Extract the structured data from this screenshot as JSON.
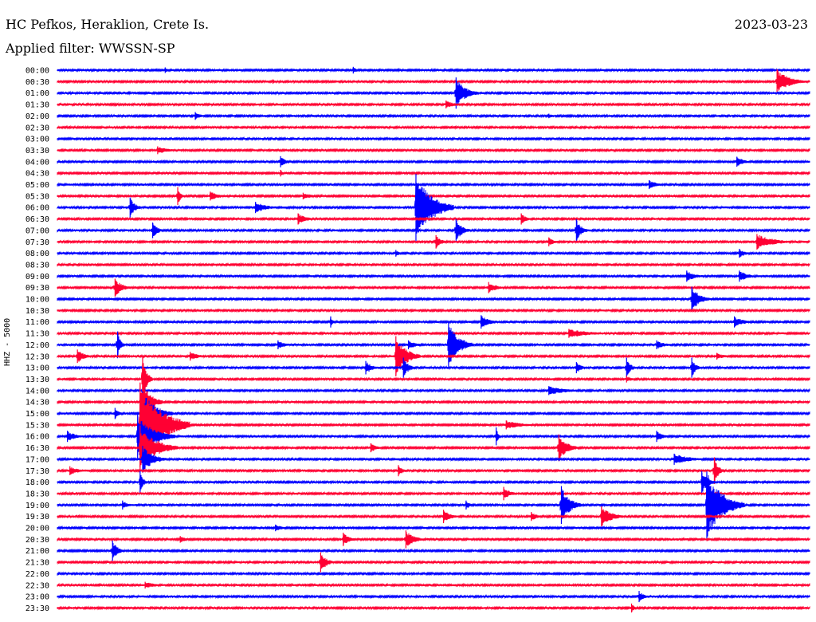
{
  "header": {
    "station": "HC Pefkos, Heraklion, Crete Is.",
    "date": "2023-03-23",
    "filter": "Applied filter: WWSSN-SP"
  },
  "axis_label": "HHZ - 5000",
  "colors": {
    "blue": "#0000ff",
    "red": "#ff0033",
    "background": "#ffffff"
  },
  "chart_data": {
    "type": "line",
    "title": "HC Pefkos, Heraklion, Crete Is.",
    "ylabel": "HHZ - 5000",
    "time_labels": [
      "00:00",
      "00:30",
      "01:00",
      "01:30",
      "02:00",
      "02:30",
      "03:00",
      "03:30",
      "04:00",
      "04:30",
      "05:00",
      "05:30",
      "06:00",
      "06:30",
      "07:00",
      "07:30",
      "08:00",
      "08:30",
      "09:00",
      "09:30",
      "10:00",
      "10:30",
      "11:00",
      "11:30",
      "12:00",
      "12:30",
      "13:00",
      "13:30",
      "14:00",
      "14:30",
      "15:00",
      "15:30",
      "16:00",
      "16:30",
      "17:00",
      "17:30",
      "18:00",
      "18:30",
      "19:00",
      "19:30",
      "20:00",
      "20:30",
      "21:00",
      "21:30",
      "22:00",
      "22:30",
      "23:00",
      "23:30"
    ],
    "trace_colors_alternating": [
      "blue",
      "red"
    ],
    "trace_minutes": 30,
    "events": [
      {
        "trace": "00:00",
        "minute": 4.3,
        "amp": 0.25,
        "dur": 0.3
      },
      {
        "trace": "00:00",
        "minute": 11.8,
        "amp": 0.3,
        "dur": 0.3
      },
      {
        "trace": "00:30",
        "minute": 8.6,
        "amp": 0.2,
        "dur": 0.2
      },
      {
        "trace": "00:30",
        "minute": 28.7,
        "amp": 1.1,
        "dur": 1.2
      },
      {
        "trace": "01:00",
        "minute": 15.9,
        "amp": 1.4,
        "dur": 0.9
      },
      {
        "trace": "01:30",
        "minute": 15.5,
        "amp": 0.35,
        "dur": 0.9
      },
      {
        "trace": "02:00",
        "minute": 5.5,
        "amp": 0.35,
        "dur": 0.6
      },
      {
        "trace": "02:00",
        "minute": 19.6,
        "amp": 0.2,
        "dur": 0.5
      },
      {
        "trace": "03:30",
        "minute": 4.0,
        "amp": 0.35,
        "dur": 1.1
      },
      {
        "trace": "04:00",
        "minute": 8.9,
        "amp": 0.5,
        "dur": 0.5
      },
      {
        "trace": "04:00",
        "minute": 27.1,
        "amp": 0.45,
        "dur": 0.7
      },
      {
        "trace": "04:30",
        "minute": 8.9,
        "amp": 0.3,
        "dur": 0.3
      },
      {
        "trace": "05:00",
        "minute": 23.6,
        "amp": 0.4,
        "dur": 0.8
      },
      {
        "trace": "05:30",
        "minute": 4.8,
        "amp": 0.8,
        "dur": 0.3
      },
      {
        "trace": "05:30",
        "minute": 6.1,
        "amp": 0.4,
        "dur": 0.9
      },
      {
        "trace": "05:30",
        "minute": 9.8,
        "amp": 0.3,
        "dur": 0.9
      },
      {
        "trace": "06:00",
        "minute": 2.9,
        "amp": 0.9,
        "dur": 0.5
      },
      {
        "trace": "06:00",
        "minute": 7.9,
        "amp": 0.5,
        "dur": 1.1
      },
      {
        "trace": "06:00",
        "minute": 14.3,
        "amp": 3.0,
        "dur": 1.5
      },
      {
        "trace": "06:30",
        "minute": 9.6,
        "amp": 0.5,
        "dur": 0.8
      },
      {
        "trace": "06:30",
        "minute": 18.5,
        "amp": 0.5,
        "dur": 0.5
      },
      {
        "trace": "07:00",
        "minute": 3.8,
        "amp": 0.7,
        "dur": 0.5
      },
      {
        "trace": "07:00",
        "minute": 15.9,
        "amp": 1.0,
        "dur": 0.6
      },
      {
        "trace": "07:00",
        "minute": 20.7,
        "amp": 1.0,
        "dur": 0.5
      },
      {
        "trace": "07:30",
        "minute": 15.1,
        "amp": 0.6,
        "dur": 0.5
      },
      {
        "trace": "07:30",
        "minute": 19.6,
        "amp": 0.4,
        "dur": 0.5
      },
      {
        "trace": "07:30",
        "minute": 27.9,
        "amp": 0.7,
        "dur": 1.6
      },
      {
        "trace": "08:00",
        "minute": 13.5,
        "amp": 0.3,
        "dur": 0.4
      },
      {
        "trace": "08:00",
        "minute": 27.2,
        "amp": 0.4,
        "dur": 0.6
      },
      {
        "trace": "09:00",
        "minute": 25.1,
        "amp": 0.5,
        "dur": 0.8
      },
      {
        "trace": "09:00",
        "minute": 27.2,
        "amp": 0.5,
        "dur": 0.8
      },
      {
        "trace": "09:30",
        "minute": 2.3,
        "amp": 0.8,
        "dur": 0.7
      },
      {
        "trace": "09:30",
        "minute": 17.2,
        "amp": 0.5,
        "dur": 0.8
      },
      {
        "trace": "10:00",
        "minute": 25.3,
        "amp": 1.1,
        "dur": 0.8
      },
      {
        "trace": "11:00",
        "minute": 10.9,
        "amp": 0.5,
        "dur": 0.2
      },
      {
        "trace": "11:00",
        "minute": 16.9,
        "amp": 0.6,
        "dur": 0.9
      },
      {
        "trace": "11:00",
        "minute": 27.0,
        "amp": 0.5,
        "dur": 0.9
      },
      {
        "trace": "11:30",
        "minute": 20.4,
        "amp": 0.4,
        "dur": 2.0
      },
      {
        "trace": "12:00",
        "minute": 2.4,
        "amp": 1.2,
        "dur": 0.3
      },
      {
        "trace": "12:00",
        "minute": 8.8,
        "amp": 0.4,
        "dur": 0.8
      },
      {
        "trace": "12:00",
        "minute": 14.0,
        "amp": 0.4,
        "dur": 0.8
      },
      {
        "trace": "12:00",
        "minute": 15.6,
        "amp": 2.0,
        "dur": 1.0
      },
      {
        "trace": "12:00",
        "minute": 23.9,
        "amp": 0.4,
        "dur": 0.8
      },
      {
        "trace": "12:30",
        "minute": 0.8,
        "amp": 0.6,
        "dur": 0.7
      },
      {
        "trace": "12:30",
        "minute": 5.3,
        "amp": 0.4,
        "dur": 0.8
      },
      {
        "trace": "12:30",
        "minute": 13.5,
        "amp": 1.8,
        "dur": 1.0
      },
      {
        "trace": "12:30",
        "minute": 26.3,
        "amp": 0.3,
        "dur": 0.8
      },
      {
        "trace": "13:00",
        "minute": 12.3,
        "amp": 0.6,
        "dur": 0.6
      },
      {
        "trace": "13:00",
        "minute": 13.8,
        "amp": 0.9,
        "dur": 0.5
      },
      {
        "trace": "13:00",
        "minute": 20.7,
        "amp": 0.5,
        "dur": 0.5
      },
      {
        "trace": "13:00",
        "minute": 22.7,
        "amp": 0.9,
        "dur": 0.4
      },
      {
        "trace": "13:00",
        "minute": 25.3,
        "amp": 0.9,
        "dur": 0.4
      },
      {
        "trace": "13:30",
        "minute": 3.4,
        "amp": 2.0,
        "dur": 0.4
      },
      {
        "trace": "13:30",
        "minute": 22.7,
        "amp": 0.3,
        "dur": 0.5
      },
      {
        "trace": "14:00",
        "minute": 19.6,
        "amp": 0.4,
        "dur": 1.7
      },
      {
        "trace": "14:30",
        "minute": 3.4,
        "amp": 1.8,
        "dur": 0.8
      },
      {
        "trace": "15:00",
        "minute": 2.3,
        "amp": 0.5,
        "dur": 0.4
      },
      {
        "trace": "15:00",
        "minute": 3.4,
        "amp": 2.0,
        "dur": 1.2
      },
      {
        "trace": "15:30",
        "minute": 3.3,
        "amp": 3.8,
        "dur": 2.0
      },
      {
        "trace": "15:30",
        "minute": 17.9,
        "amp": 0.4,
        "dur": 1.5
      },
      {
        "trace": "16:00",
        "minute": 0.4,
        "amp": 0.5,
        "dur": 0.8
      },
      {
        "trace": "16:00",
        "minute": 3.2,
        "amp": 2.0,
        "dur": 1.5
      },
      {
        "trace": "16:00",
        "minute": 17.5,
        "amp": 0.8,
        "dur": 0.2
      },
      {
        "trace": "16:00",
        "minute": 23.9,
        "amp": 0.5,
        "dur": 0.6
      },
      {
        "trace": "16:30",
        "minute": 3.3,
        "amp": 2.0,
        "dur": 1.5
      },
      {
        "trace": "16:30",
        "minute": 12.5,
        "amp": 0.4,
        "dur": 0.6
      },
      {
        "trace": "16:30",
        "minute": 20.0,
        "amp": 1.2,
        "dur": 0.8
      },
      {
        "trace": "17:00",
        "minute": 3.4,
        "amp": 1.2,
        "dur": 1.0
      },
      {
        "trace": "17:00",
        "minute": 24.6,
        "amp": 0.5,
        "dur": 1.5
      },
      {
        "trace": "17:30",
        "minute": 0.5,
        "amp": 0.4,
        "dur": 0.8
      },
      {
        "trace": "17:30",
        "minute": 13.6,
        "amp": 0.5,
        "dur": 0.4
      },
      {
        "trace": "17:30",
        "minute": 26.2,
        "amp": 1.2,
        "dur": 0.4
      },
      {
        "trace": "18:00",
        "minute": 3.3,
        "amp": 1.0,
        "dur": 0.3
      },
      {
        "trace": "18:00",
        "minute": 25.7,
        "amp": 1.0,
        "dur": 0.6
      },
      {
        "trace": "18:30",
        "minute": 17.8,
        "amp": 0.6,
        "dur": 0.6
      },
      {
        "trace": "19:00",
        "minute": 2.6,
        "amp": 0.4,
        "dur": 0.6
      },
      {
        "trace": "19:00",
        "minute": 16.3,
        "amp": 0.4,
        "dur": 0.4
      },
      {
        "trace": "19:00",
        "minute": 20.1,
        "amp": 1.7,
        "dur": 0.8
      },
      {
        "trace": "19:00",
        "minute": 25.9,
        "amp": 3.0,
        "dur": 1.5
      },
      {
        "trace": "19:30",
        "minute": 15.4,
        "amp": 0.6,
        "dur": 0.7
      },
      {
        "trace": "19:30",
        "minute": 18.9,
        "amp": 0.4,
        "dur": 0.6
      },
      {
        "trace": "19:30",
        "minute": 21.7,
        "amp": 0.9,
        "dur": 1.0
      },
      {
        "trace": "20:00",
        "minute": 8.7,
        "amp": 0.3,
        "dur": 0.8
      },
      {
        "trace": "20:30",
        "minute": 4.9,
        "amp": 0.3,
        "dur": 0.6
      },
      {
        "trace": "20:30",
        "minute": 11.4,
        "amp": 0.6,
        "dur": 0.6
      },
      {
        "trace": "20:30",
        "minute": 13.9,
        "amp": 0.8,
        "dur": 0.8
      },
      {
        "trace": "21:00",
        "minute": 2.2,
        "amp": 0.9,
        "dur": 0.5
      },
      {
        "trace": "21:30",
        "minute": 10.5,
        "amp": 0.9,
        "dur": 0.6
      },
      {
        "trace": "22:30",
        "minute": 3.5,
        "amp": 0.3,
        "dur": 1.2
      },
      {
        "trace": "23:00",
        "minute": 23.2,
        "amp": 0.5,
        "dur": 0.5
      },
      {
        "trace": "23:30",
        "minute": 22.9,
        "amp": 0.4,
        "dur": 0.3
      }
    ]
  }
}
